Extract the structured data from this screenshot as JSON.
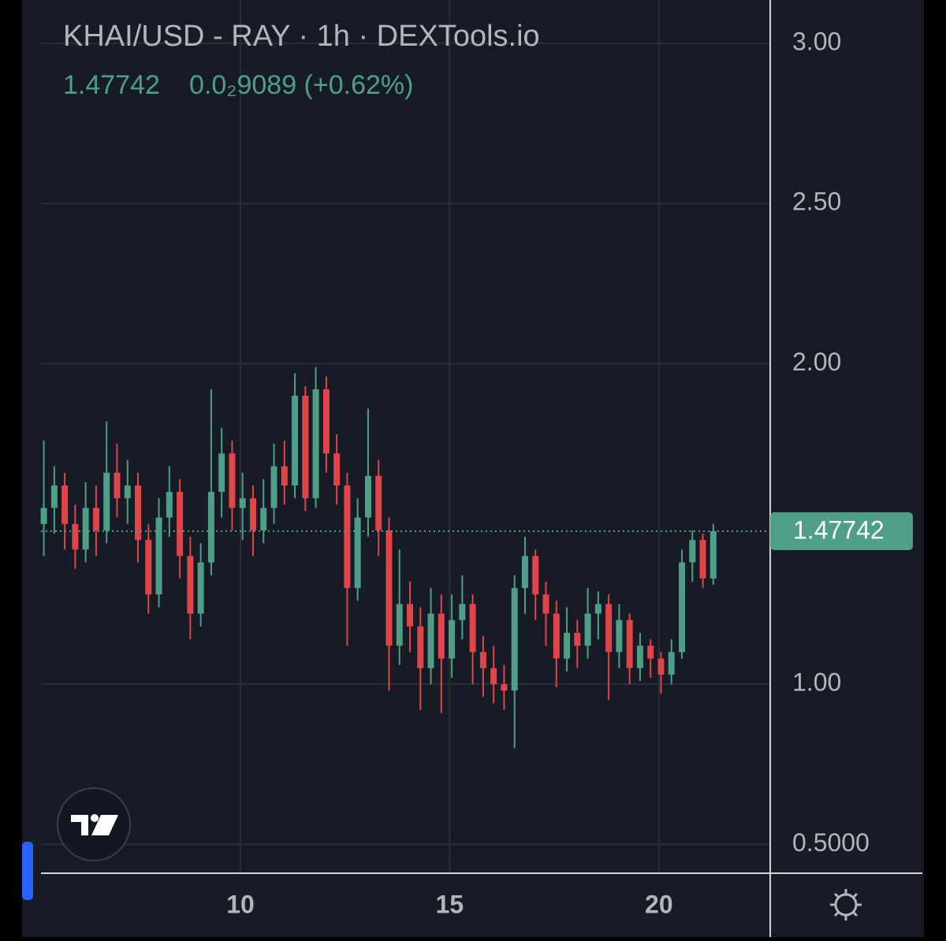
{
  "chart_data": {
    "type": "candlestick",
    "title": "KHAI/USD - RAY · 1h · DEXTools.io",
    "last_price": 1.47742,
    "change": "0.0₂9089 (+0.62%)",
    "up_color": "#4f9e88",
    "down_color": "#e0454a",
    "last_color": "#4f9e88",
    "grid": true,
    "xlim": [
      4.78,
      22.66
    ],
    "xticks": [
      10,
      15,
      20
    ],
    "ylim": [
      0.41,
      3.135
    ],
    "yticks": [
      {
        "value": 3,
        "label": "3.00"
      },
      {
        "value": 2.5,
        "label": "2.50"
      },
      {
        "value": 2,
        "label": "2.00"
      },
      {
        "value": 1,
        "label": "1.00"
      },
      {
        "value": 0.5,
        "label": "0.5000"
      }
    ],
    "x": [
      5.3,
      5.55,
      5.8,
      6.05,
      6.3,
      6.55,
      6.8,
      7.05,
      7.3,
      7.55,
      7.8,
      8.05,
      8.3,
      8.55,
      8.8,
      9.05,
      9.3,
      9.55,
      9.8,
      10.05,
      10.3,
      10.55,
      10.8,
      11.05,
      11.3,
      11.55,
      11.8,
      12.05,
      12.3,
      12.55,
      12.8,
      13.05,
      13.3,
      13.55,
      13.8,
      14.05,
      14.3,
      14.55,
      14.8,
      15.05,
      15.3,
      15.55,
      15.8,
      16.05,
      16.3,
      16.55,
      16.8,
      17.05,
      17.3,
      17.55,
      17.8,
      18.05,
      18.3,
      18.55,
      18.8,
      19.05,
      19.3,
      19.55,
      19.8,
      20.05,
      20.3,
      20.55,
      20.8,
      21.05,
      21.3
    ],
    "open": [
      1.5,
      1.55,
      1.62,
      1.5,
      1.42,
      1.55,
      1.48,
      1.66,
      1.58,
      1.62,
      1.45,
      1.28,
      1.52,
      1.6,
      1.4,
      1.22,
      1.38,
      1.6,
      1.72,
      1.55,
      1.58,
      1.48,
      1.55,
      1.68,
      1.62,
      1.9,
      1.58,
      1.92,
      1.72,
      1.62,
      1.3,
      1.52,
      1.65,
      1.48,
      1.12,
      1.25,
      1.18,
      1.05,
      1.22,
      1.08,
      1.2,
      1.25,
      1.1,
      1.05,
      1.0,
      0.98,
      1.3,
      1.4,
      1.28,
      1.22,
      1.08,
      1.16,
      1.12,
      1.22,
      1.25,
      1.1,
      1.2,
      1.05,
      1.12,
      1.08,
      1.03,
      1.1,
      1.38,
      1.45,
      1.33
    ],
    "high": [
      1.76,
      1.68,
      1.66,
      1.56,
      1.63,
      1.62,
      1.82,
      1.75,
      1.7,
      1.66,
      1.5,
      1.58,
      1.68,
      1.64,
      1.46,
      1.44,
      1.92,
      1.8,
      1.76,
      1.66,
      1.62,
      1.64,
      1.75,
      1.76,
      1.97,
      1.93,
      1.99,
      1.96,
      1.78,
      1.66,
      1.58,
      1.86,
      1.7,
      1.52,
      1.42,
      1.32,
      1.24,
      1.3,
      1.28,
      1.28,
      1.34,
      1.28,
      1.15,
      1.12,
      1.06,
      1.34,
      1.46,
      1.42,
      1.32,
      1.26,
      1.24,
      1.2,
      1.3,
      1.29,
      1.28,
      1.25,
      1.22,
      1.16,
      1.14,
      1.1,
      1.14,
      1.42,
      1.48,
      1.47,
      1.5
    ],
    "low": [
      1.4,
      1.47,
      1.42,
      1.36,
      1.38,
      1.4,
      1.44,
      1.52,
      1.5,
      1.38,
      1.22,
      1.24,
      1.46,
      1.33,
      1.14,
      1.18,
      1.34,
      1.52,
      1.48,
      1.45,
      1.4,
      1.44,
      1.5,
      1.56,
      1.58,
      1.54,
      1.55,
      1.66,
      1.56,
      1.12,
      1.26,
      1.46,
      1.4,
      0.98,
      1.06,
      1.1,
      0.92,
      1.0,
      0.91,
      1.02,
      1.14,
      1.0,
      0.96,
      0.94,
      0.92,
      0.8,
      1.22,
      1.2,
      1.12,
      0.99,
      1.04,
      1.05,
      1.08,
      1.14,
      0.95,
      1.05,
      1.0,
      1.01,
      1.02,
      0.97,
      1.0,
      1.08,
      1.32,
      1.3,
      1.31
    ],
    "close": [
      1.55,
      1.62,
      1.5,
      1.42,
      1.55,
      1.48,
      1.66,
      1.58,
      1.62,
      1.45,
      1.28,
      1.52,
      1.6,
      1.4,
      1.22,
      1.38,
      1.6,
      1.72,
      1.55,
      1.58,
      1.48,
      1.55,
      1.68,
      1.62,
      1.9,
      1.58,
      1.92,
      1.72,
      1.62,
      1.3,
      1.52,
      1.65,
      1.48,
      1.12,
      1.25,
      1.18,
      1.05,
      1.22,
      1.08,
      1.2,
      1.25,
      1.1,
      1.05,
      1.0,
      0.98,
      1.3,
      1.4,
      1.28,
      1.22,
      1.08,
      1.16,
      1.12,
      1.22,
      1.25,
      1.1,
      1.2,
      1.05,
      1.12,
      1.08,
      1.03,
      1.1,
      1.38,
      1.45,
      1.33,
      1.47742
    ]
  }
}
